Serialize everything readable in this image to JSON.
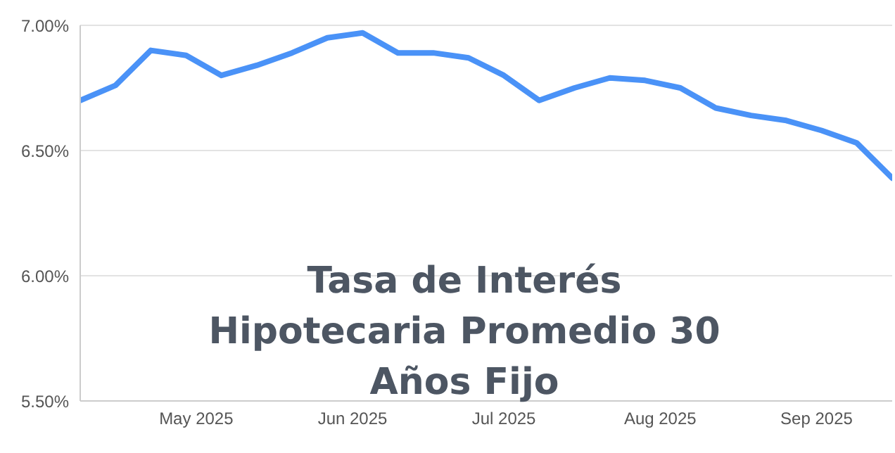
{
  "chart_data": {
    "type": "line",
    "title": "Tasa de Interés Hipotecaria Promedio 30 Años Fijo",
    "x": [
      "2025-04-08",
      "2025-04-15",
      "2025-04-22",
      "2025-04-29",
      "2025-05-06",
      "2025-05-13",
      "2025-05-20",
      "2025-05-27",
      "2025-06-03",
      "2025-06-10",
      "2025-06-17",
      "2025-06-24",
      "2025-07-01",
      "2025-07-08",
      "2025-07-15",
      "2025-07-22",
      "2025-07-29",
      "2025-08-05",
      "2025-08-12",
      "2025-08-19",
      "2025-08-26",
      "2025-09-02",
      "2025-09-09",
      "2025-09-16"
    ],
    "series": [
      {
        "color": "#4a92f7",
        "values": [
          6.7,
          6.76,
          6.9,
          6.88,
          6.8,
          6.84,
          6.89,
          6.95,
          6.97,
          6.89,
          6.89,
          6.87,
          6.8,
          6.7,
          6.75,
          6.79,
          6.78,
          6.75,
          6.67,
          6.64,
          6.62,
          6.58,
          6.53,
          6.39
        ]
      }
    ],
    "xlim": [
      "2025-04-08",
      "2025-09-16"
    ],
    "xticks": [
      {
        "value": "2025-05-01",
        "label": "May 2025"
      },
      {
        "value": "2025-06-01",
        "label": "Jun 2025"
      },
      {
        "value": "2025-07-01",
        "label": "Jul 2025"
      },
      {
        "value": "2025-08-01",
        "label": "Aug 2025"
      },
      {
        "value": "2025-09-01",
        "label": "Sep 2025"
      }
    ],
    "ylim": [
      5.5,
      7.0
    ],
    "yticks": [
      {
        "value": 5.5,
        "label": "5.50%"
      },
      {
        "value": 6.0,
        "label": "6.00%"
      },
      {
        "value": 6.5,
        "label": "6.50%"
      },
      {
        "value": 7.0,
        "label": "7.00%"
      }
    ],
    "grid": "y",
    "marker": "none",
    "line_style": "solid",
    "legend": false
  }
}
